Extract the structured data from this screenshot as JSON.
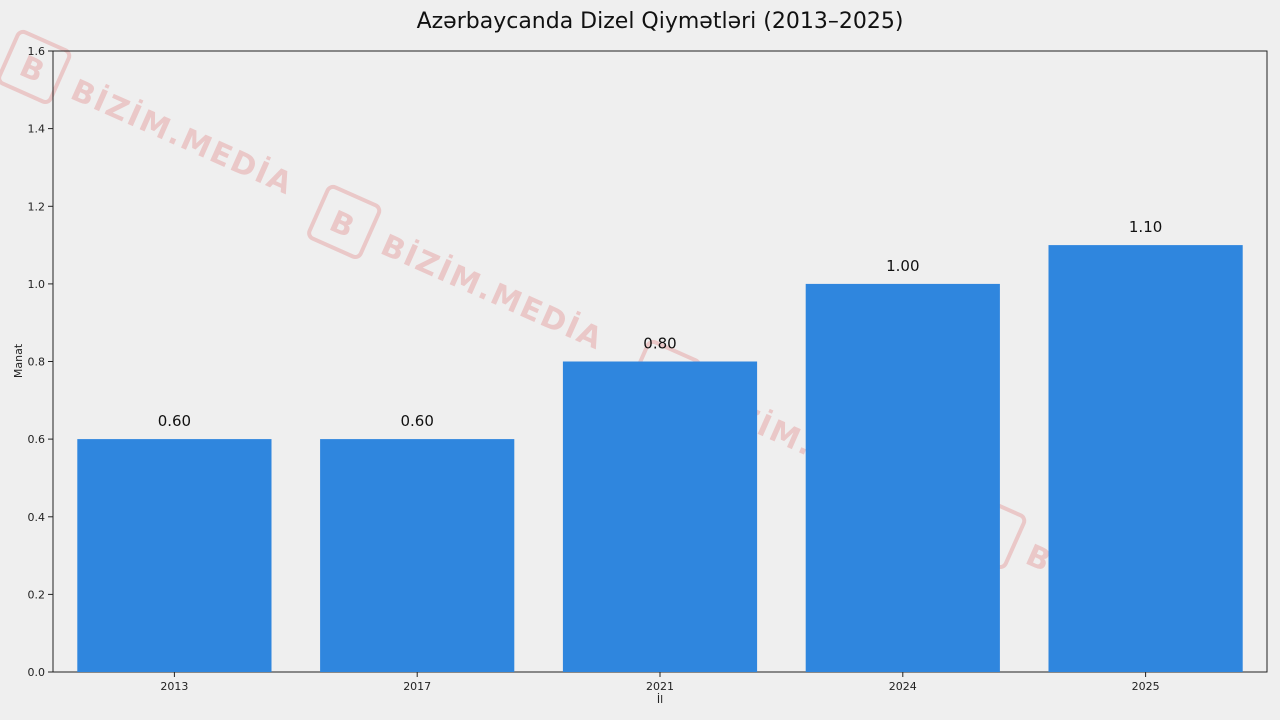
{
  "watermark": {
    "text": "BİZİM.MEDİA",
    "logo_letter": "B",
    "color": "#e59a9a"
  },
  "chart_data": {
    "type": "bar",
    "title": "Azərbaycanda Dizel Qiymətləri (2013–2025)",
    "xlabel": "İl",
    "ylabel": "Manat",
    "categories": [
      "2013",
      "2017",
      "2021",
      "2024",
      "2025"
    ],
    "values": [
      0.6,
      0.6,
      0.8,
      1.0,
      1.1
    ],
    "value_labels": [
      "0.60",
      "0.60",
      "0.80",
      "1.00",
      "1.10"
    ],
    "ylim": [
      0,
      1.6
    ],
    "yticks": [
      0.0,
      0.2,
      0.4,
      0.6,
      0.8,
      1.0,
      1.2,
      1.4,
      1.6
    ],
    "ytick_labels": [
      "0.0",
      "0.2",
      "0.4",
      "0.6",
      "0.8",
      "1.0",
      "1.2",
      "1.4",
      "1.6"
    ],
    "bar_color": "#2f86de",
    "grid": false,
    "legend": "none"
  }
}
